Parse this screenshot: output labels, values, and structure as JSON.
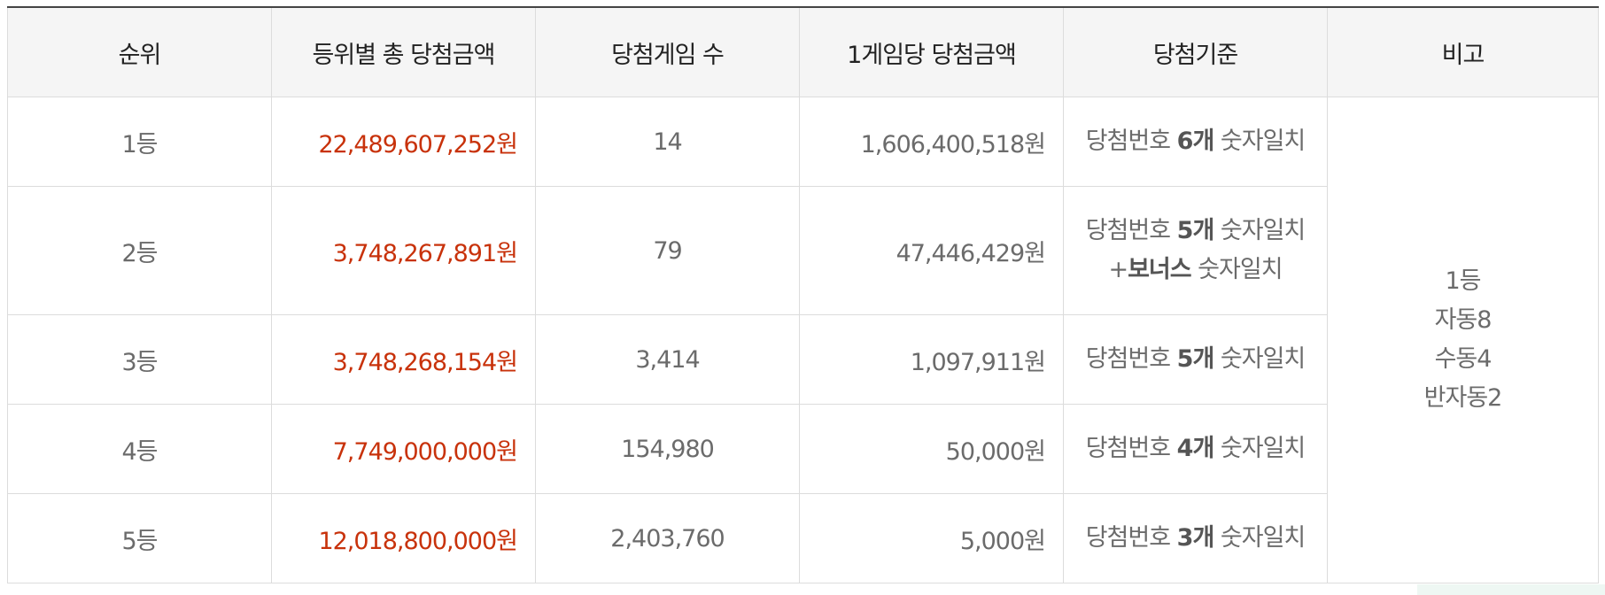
{
  "headers": [
    "순위",
    "등위별 총 당첨금액",
    "당첨게임 수",
    "1게임당 당첨금액",
    "당첨기준",
    "비고"
  ],
  "rows": [
    {
      "rank": "1등",
      "total": "22,489,607,252원",
      "games": "14",
      "per_game": "1,606,400,518원",
      "criteria": {
        "prefix": "당첨번호 ",
        "count": "6개",
        "suffix": " 숫자일치"
      }
    },
    {
      "rank": "2등",
      "total": "3,748,267,891원",
      "games": "79",
      "per_game": "47,446,429원",
      "criteria": {
        "prefix": "당첨번호 ",
        "count": "5개",
        "suffix": " 숫자일치",
        "line2_prefix": "+",
        "line2_bold": "보너스",
        "line2_suffix": " 숫자일치"
      }
    },
    {
      "rank": "3등",
      "total": "3,748,268,154원",
      "games": "3,414",
      "per_game": "1,097,911원",
      "criteria": {
        "prefix": "당첨번호 ",
        "count": "5개",
        "suffix": " 숫자일치"
      }
    },
    {
      "rank": "4등",
      "total": "7,749,000,000원",
      "games": "154,980",
      "per_game": "50,000원",
      "criteria": {
        "prefix": "당첨번호 ",
        "count": "4개",
        "suffix": " 숫자일치"
      }
    },
    {
      "rank": "5등",
      "total": "12,018,800,000원",
      "games": "2,403,760",
      "per_game": "5,000원",
      "criteria": {
        "prefix": "당첨번호 ",
        "count": "3개",
        "suffix": " 숫자일치"
      }
    }
  ],
  "note": [
    "1등",
    "자동8",
    "수동4",
    "반자동2"
  ],
  "colors": {
    "total_amount": "#c8320b",
    "header_bg": "#f5f5f5",
    "border": "#dcdcdc",
    "top_border": "#444444"
  }
}
